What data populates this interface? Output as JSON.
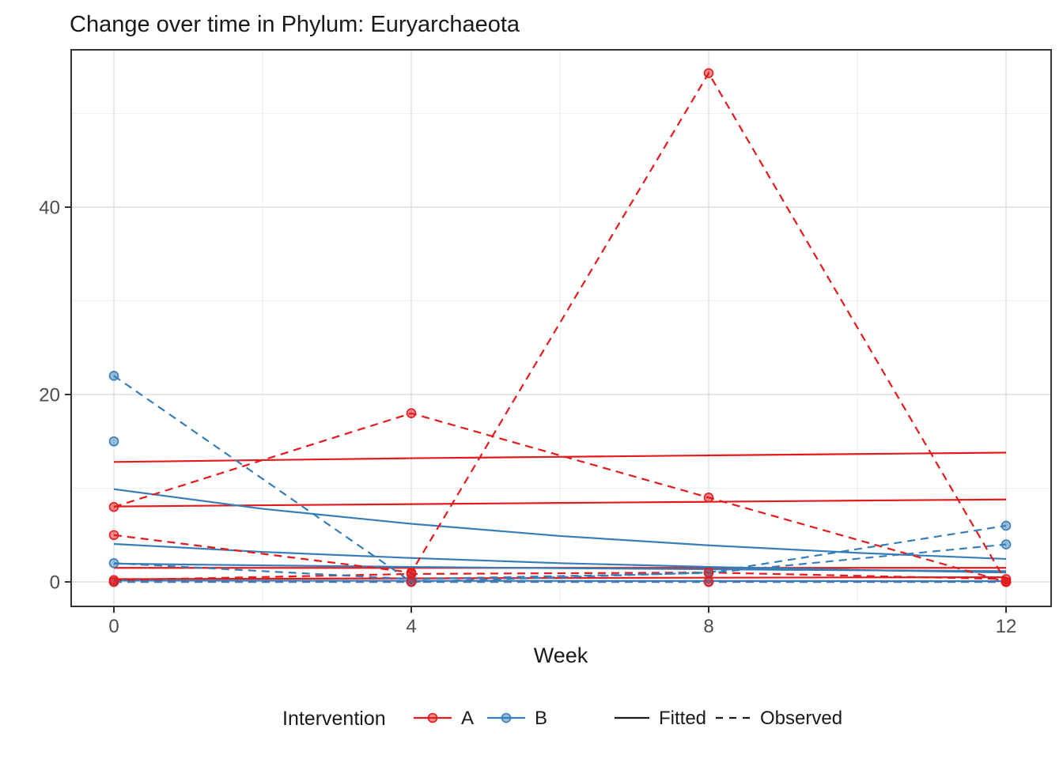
{
  "title": "Change over time in Phylum: Euryarchaeota",
  "colors": {
    "A": "#E41A1C",
    "B": "#377EB8",
    "linetype_key": "#1a1a1a",
    "grid_major": "#E3E3E3",
    "grid_minor": "#F1F1F1",
    "panel_border": "#343434",
    "tick_mark": "#333333",
    "tick_label": "#4d4d4d",
    "text": "#1a1a1a",
    "panel_bg": "#ffffff"
  },
  "axes": {
    "x": {
      "label": "Week",
      "ticks": [
        0,
        4,
        8,
        12
      ],
      "tick_labels": [
        "0",
        "4",
        "8",
        "12"
      ],
      "minor_ticks": [
        2,
        6,
        10
      ]
    },
    "y": {
      "label": "",
      "ticks": [
        0,
        20,
        40
      ],
      "tick_labels": [
        "0",
        "20",
        "40"
      ],
      "minor_ticks": [
        10,
        30,
        50
      ]
    }
  },
  "legend": {
    "title": "Intervention",
    "items": [
      {
        "label": "A",
        "color": "#E41A1C"
      },
      {
        "label": "B",
        "color": "#377EB8"
      }
    ],
    "linetype_items": [
      {
        "label": "Fitted",
        "dash": "solid"
      },
      {
        "label": "Observed",
        "dash": "dashed"
      }
    ]
  },
  "chart_data": {
    "type": "line",
    "title": "Change over time in Phylum: Euryarchaeota",
    "xlabel": "Week",
    "ylabel": "",
    "xlim": [
      -0.57,
      12.61
    ],
    "ylim": [
      -2.6,
      56.8
    ],
    "grid": true,
    "legend_position": "bottom",
    "x_fitted": [
      0,
      2,
      4,
      6,
      8,
      10,
      12
    ],
    "x_observed": [
      0,
      4,
      8,
      12
    ],
    "series": [
      {
        "name": "A-fitted-1",
        "intervention": "A",
        "linetype": "fitted",
        "x": "x_fitted",
        "values": [
          12.8,
          13.0,
          13.2,
          13.35,
          13.5,
          13.65,
          13.8
        ]
      },
      {
        "name": "A-fitted-2",
        "intervention": "A",
        "linetype": "fitted",
        "x": "x_fitted",
        "values": [
          8.05,
          8.18,
          8.3,
          8.43,
          8.55,
          8.68,
          8.8
        ]
      },
      {
        "name": "A-fitted-3",
        "intervention": "A",
        "linetype": "fitted",
        "x": "x_fitted",
        "values": [
          1.5,
          1.5,
          1.5,
          1.5,
          1.5,
          1.5,
          1.5
        ]
      },
      {
        "name": "A-fitted-4",
        "intervention": "A",
        "linetype": "fitted",
        "x": "x_fitted",
        "values": [
          0.3,
          0.34,
          0.38,
          0.42,
          0.45,
          0.48,
          0.5
        ]
      },
      {
        "name": "B-fitted-1",
        "intervention": "B",
        "linetype": "fitted",
        "x": "x_fitted",
        "values": [
          9.9,
          7.8,
          6.2,
          4.9,
          3.9,
          3.1,
          2.45
        ]
      },
      {
        "name": "B-fitted-2",
        "intervention": "B",
        "linetype": "fitted",
        "x": "x_fitted",
        "values": [
          4.05,
          3.2,
          2.55,
          2.0,
          1.6,
          1.27,
          1.0
        ]
      },
      {
        "name": "B-fitted-3",
        "intervention": "B",
        "linetype": "fitted",
        "x": "x_fitted",
        "values": [
          1.95,
          1.76,
          1.6,
          1.46,
          1.35,
          1.24,
          1.15
        ]
      },
      {
        "name": "B-fitted-4",
        "intervention": "B",
        "linetype": "fitted",
        "x": "x_fitted",
        "values": [
          0.15,
          0.135,
          0.12,
          0.11,
          0.1,
          0.09,
          0.08
        ]
      },
      {
        "name": "A-observed-1",
        "intervention": "A",
        "linetype": "observed",
        "x": "x_observed",
        "values": [
          8,
          18,
          9,
          0
        ]
      },
      {
        "name": "A-observed-2",
        "intervention": "A",
        "linetype": "observed",
        "x": "x_observed",
        "values": [
          5,
          1,
          54.3,
          0
        ]
      },
      {
        "name": "A-observed-3",
        "intervention": "A",
        "linetype": "observed",
        "x": "x_observed",
        "values": [
          0.2,
          0.85,
          1.0,
          0.3
        ]
      },
      {
        "name": "A-observed-4",
        "intervention": "A",
        "linetype": "observed",
        "x": "x_observed",
        "values": [
          0,
          0,
          0,
          0
        ]
      },
      {
        "name": "B-observed-1",
        "intervention": "B",
        "linetype": "observed",
        "x": "x_observed",
        "values": [
          22,
          0,
          1,
          6
        ]
      },
      {
        "name": "B-observed-2",
        "intervention": "B",
        "linetype": "observed",
        "x": "x_observed",
        "values": [
          15,
          null,
          null,
          null
        ]
      },
      {
        "name": "B-observed-3",
        "intervention": "B",
        "linetype": "observed",
        "x": "x_observed",
        "values": [
          2,
          0.3,
          0.95,
          4
        ]
      },
      {
        "name": "B-observed-4",
        "intervention": "B",
        "linetype": "observed",
        "x": "x_observed",
        "values": [
          0,
          0,
          0,
          0
        ]
      }
    ]
  }
}
